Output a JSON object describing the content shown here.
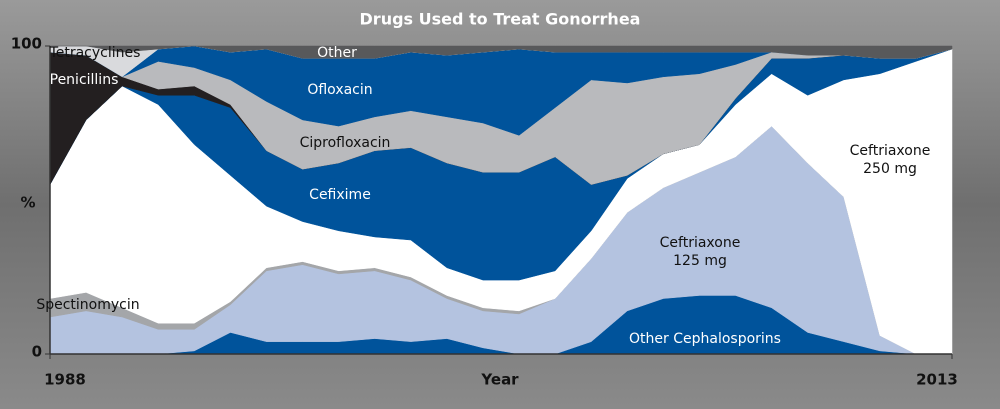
{
  "chart_data": {
    "type": "stacked_area",
    "title": "Drugs Used to Treat Gonorrhea",
    "x_label": "Year",
    "y_label": "%",
    "x": [
      1988,
      1989,
      1990,
      1991,
      1992,
      1993,
      1994,
      1995,
      1996,
      1997,
      1998,
      1999,
      2000,
      2001,
      2002,
      2003,
      2004,
      2005,
      2006,
      2007,
      2008,
      2009,
      2010,
      2011,
      2012,
      2013
    ],
    "xlim": [
      1988,
      2013
    ],
    "xticks": [
      1988,
      2013
    ],
    "ylim": [
      0,
      100
    ],
    "yticks": [
      0,
      100
    ],
    "series": [
      {
        "name": "Other Cephalosporins",
        "color": "#00539b",
        "values": [
          0,
          0,
          0,
          0,
          1,
          7,
          4,
          4,
          4,
          5,
          4,
          5,
          2,
          0,
          0,
          4,
          14,
          18,
          19,
          19,
          15,
          7,
          4,
          1,
          0,
          0
        ]
      },
      {
        "name": "Ceftriaxone 125 mg",
        "color": "#b4c3e0",
        "values": [
          12,
          14,
          12,
          8,
          7,
          9,
          23,
          25,
          22,
          22,
          20,
          13,
          12,
          13,
          18,
          27,
          32,
          36,
          40,
          45,
          59,
          55,
          47,
          5,
          0,
          0
        ]
      },
      {
        "name": "Spectinomycin",
        "color": "#a4a6a9",
        "values": [
          6,
          6,
          3,
          2,
          2,
          1,
          1,
          1,
          1,
          1,
          1,
          1,
          1,
          1,
          0,
          0,
          0,
          0,
          0,
          0,
          0,
          0,
          0,
          0,
          0,
          0
        ]
      },
      {
        "name": "Ceftriaxone 250 mg",
        "color": "#ffffff",
        "values": [
          37,
          56,
          72,
          71,
          58,
          41,
          20,
          13,
          13,
          10,
          12,
          9,
          9,
          10,
          9,
          9,
          11,
          11,
          9,
          17,
          17,
          22,
          38,
          85,
          95,
          99
        ]
      },
      {
        "name": "Cefixime",
        "color": "#00539b",
        "values": [
          0,
          0,
          0,
          3,
          16,
          22,
          18,
          17,
          22,
          28,
          30,
          34,
          35,
          35,
          37,
          15,
          1,
          0,
          0,
          2,
          5,
          12,
          8,
          5,
          1,
          0
        ]
      },
      {
        "name": "Penicillins",
        "color": "#231f20",
        "values": [
          43,
          21,
          3,
          2,
          3,
          1,
          0,
          0,
          0,
          0,
          0,
          0,
          0,
          0,
          0,
          0,
          0,
          0,
          0,
          0,
          0,
          0,
          0,
          0,
          0,
          0
        ]
      },
      {
        "name": "Ciprofloxacin",
        "color": "#b9babd",
        "values": [
          0,
          0,
          0,
          9,
          6,
          8,
          16,
          16,
          12,
          11,
          12,
          15,
          16,
          12,
          16,
          34,
          30,
          25,
          23,
          11,
          2,
          1,
          0,
          0,
          0,
          0
        ]
      },
      {
        "name": "Ofloxacin",
        "color": "#00539b",
        "values": [
          0,
          0,
          0,
          4,
          7,
          9,
          17,
          20,
          22,
          19,
          19,
          20,
          23,
          28,
          18,
          9,
          10,
          8,
          7,
          4,
          0,
          0,
          0,
          0,
          0,
          0
        ]
      },
      {
        "name": "Tetracyclines",
        "color": "#d9dadd",
        "values": [
          2,
          3,
          8,
          0,
          0,
          0,
          0,
          0,
          0,
          0,
          0,
          0,
          0,
          0,
          0,
          0,
          0,
          0,
          0,
          0,
          0,
          0,
          0,
          0,
          0,
          0
        ]
      },
      {
        "name": "Other",
        "color": "#58595b",
        "values": [
          0,
          0,
          2,
          1,
          0,
          2,
          1,
          4,
          4,
          4,
          2,
          3,
          2,
          1,
          2,
          2,
          2,
          2,
          2,
          2,
          2,
          3,
          3,
          4,
          4,
          1
        ]
      }
    ]
  }
}
